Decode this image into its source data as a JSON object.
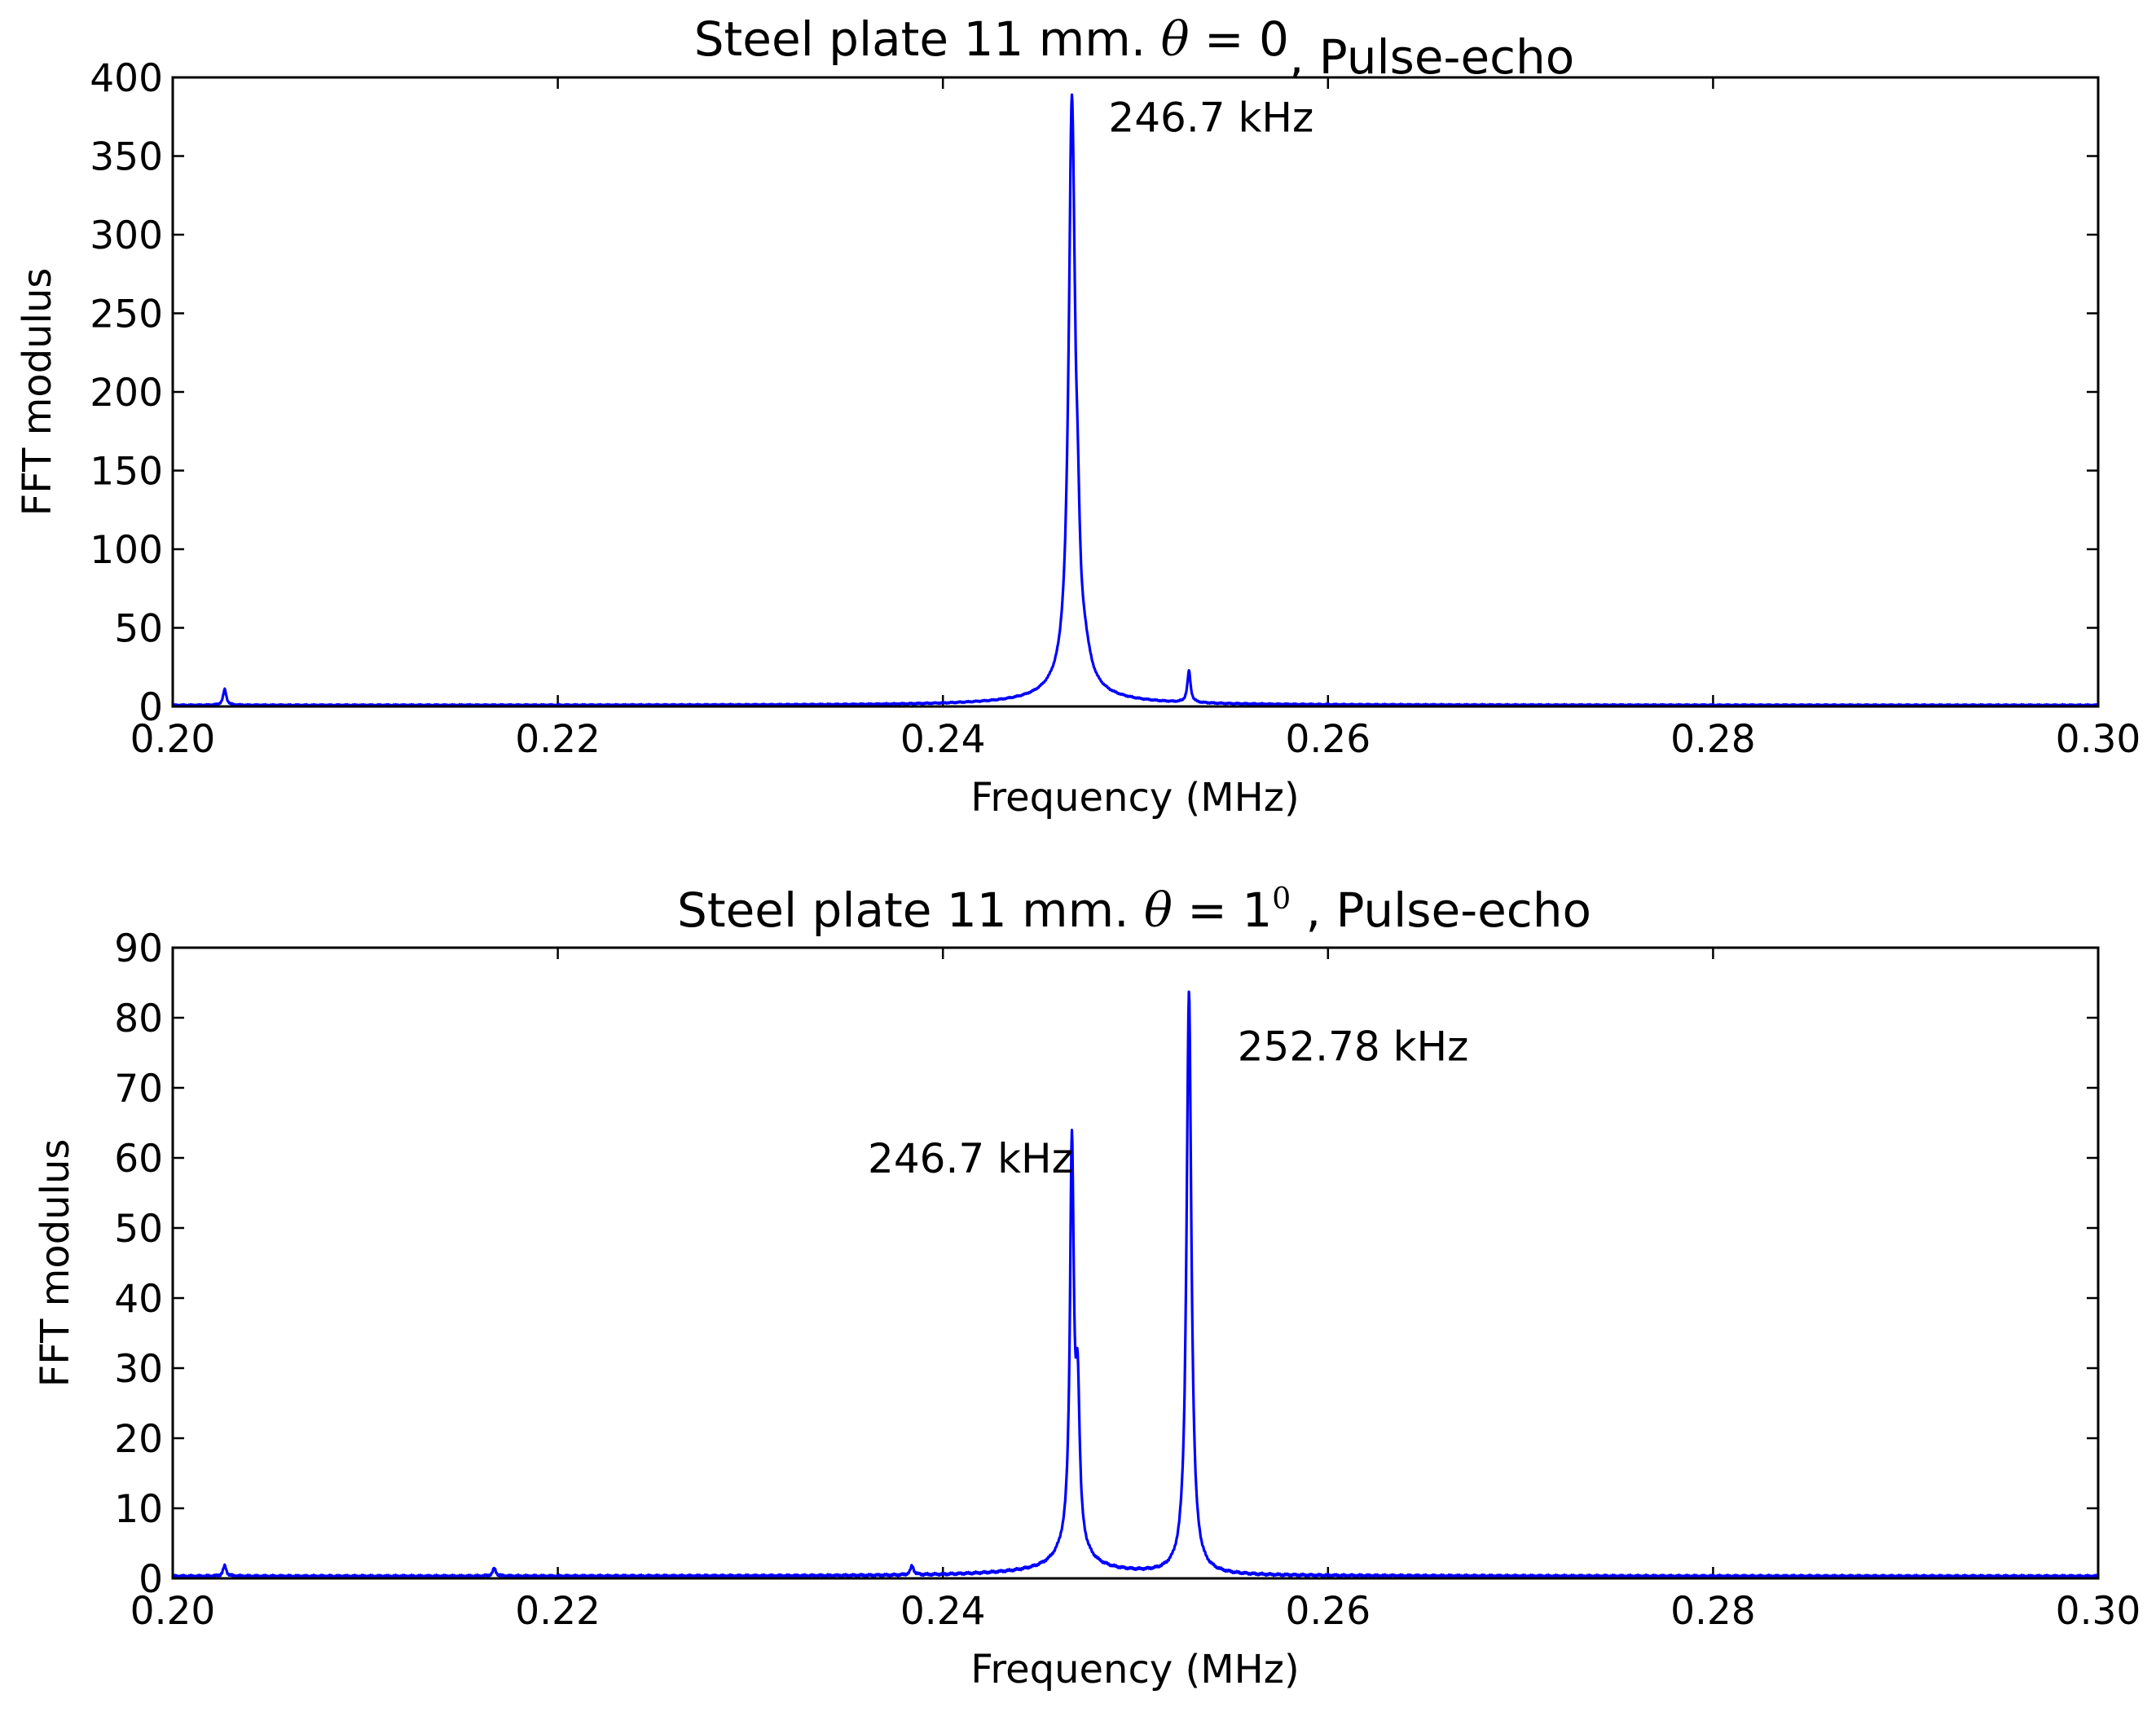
{
  "chart_data": [
    {
      "type": "line",
      "title_parts": {
        "prefix": "Steel plate 11 mm. ",
        "symbol": "θ",
        "middle": " = 0",
        "superscript": "",
        "suffix": ", Pulse-echo"
      },
      "xlabel": "Frequency (MHz)",
      "ylabel": "FFT modulus",
      "xlim": [
        0.2,
        0.3
      ],
      "ylim": [
        0,
        400
      ],
      "xticks": [
        "0.20",
        "0.22",
        "0.24",
        "0.26",
        "0.28",
        "0.30"
      ],
      "yticks": [
        "0",
        "50",
        "100",
        "150",
        "200",
        "250",
        "300",
        "350",
        "400"
      ],
      "grid": false,
      "color": "#0000ff",
      "baseline": 0.8,
      "peaks": [
        {
          "x": 0.2027,
          "y": 10,
          "w": 0.0001
        },
        {
          "x": 0.2467,
          "y": 365,
          "w": 0.0002
        },
        {
          "x": 0.247,
          "y": 45,
          "w": 0.00012
        },
        {
          "x": 0.2474,
          "y": 12,
          "w": 0.0003
        },
        {
          "x": 0.25278,
          "y": 20,
          "w": 0.0001
        }
      ],
      "skirts": [
        {
          "x": 0.2467,
          "a": 12,
          "w": 0.0012
        },
        {
          "x": 0.2468,
          "a": 3,
          "w": 0.004
        }
      ],
      "annotations": [
        {
          "text": "246.7 kHz",
          "x": 0.2486,
          "y": 375
        }
      ]
    },
    {
      "type": "line",
      "title_parts": {
        "prefix": "Steel plate 11 mm. ",
        "symbol": "θ",
        "middle": " = 1",
        "superscript": "0",
        "suffix": " , Pulse-echo"
      },
      "xlabel": "Frequency (MHz)",
      "ylabel": "FFT modulus",
      "xlim": [
        0.2,
        0.3
      ],
      "ylim": [
        0,
        90
      ],
      "xticks": [
        "0.20",
        "0.22",
        "0.24",
        "0.26",
        "0.28",
        "0.30"
      ],
      "yticks": [
        "0",
        "10",
        "20",
        "30",
        "40",
        "50",
        "60",
        "70",
        "80",
        "90"
      ],
      "grid": false,
      "color": "#0000ff",
      "baseline": 0.3,
      "peaks": [
        {
          "x": 0.2027,
          "y": 1.5,
          "w": 0.0001
        },
        {
          "x": 0.2167,
          "y": 1.1,
          "w": 0.0001
        },
        {
          "x": 0.2384,
          "y": 1.3,
          "w": 0.0001
        },
        {
          "x": 0.2467,
          "y": 56,
          "w": 0.00012
        },
        {
          "x": 0.247,
          "y": 20,
          "w": 0.00012
        },
        {
          "x": 0.25278,
          "y": 81,
          "w": 0.00015
        }
      ],
      "skirts": [
        {
          "x": 0.2467,
          "a": 4,
          "w": 0.0008
        },
        {
          "x": 0.2467,
          "a": 0.8,
          "w": 0.004
        },
        {
          "x": 0.25278,
          "a": 2,
          "w": 0.0005
        }
      ],
      "annotations": [
        {
          "text": "246.7 kHz",
          "x": 0.2361,
          "y": 60
        },
        {
          "text": "252.78 kHz",
          "x": 0.2553,
          "y": 76
        }
      ]
    }
  ]
}
